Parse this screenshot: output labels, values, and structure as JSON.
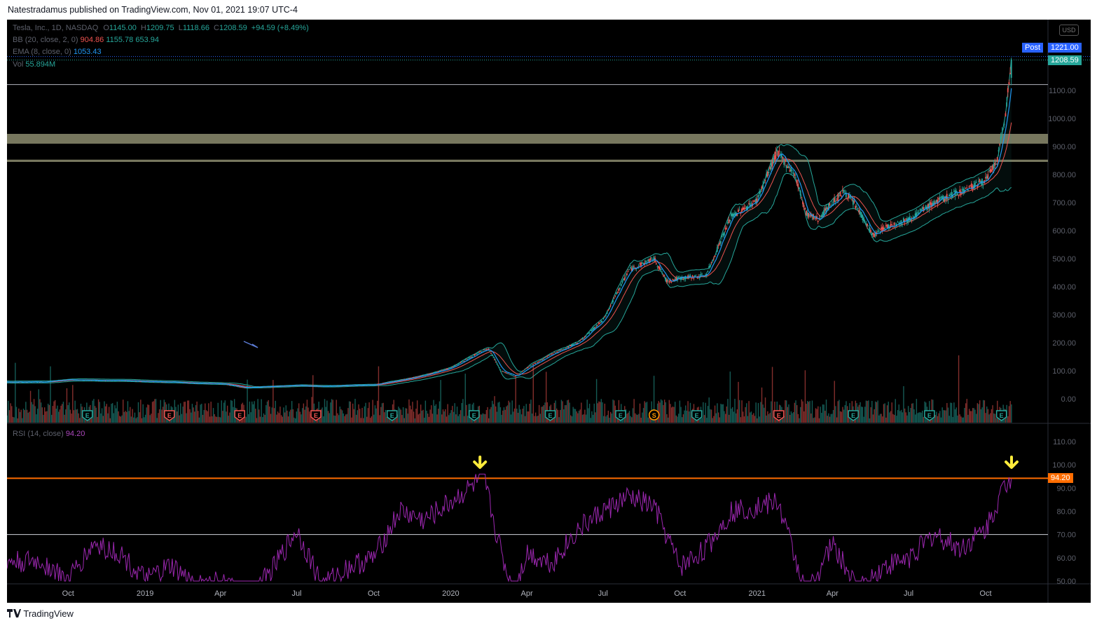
{
  "header": {
    "published_text": "Natestradamus published on TradingView.com, Nov 01, 2021 19:07 UTC-4"
  },
  "legend": {
    "symbol": "Tesla, Inc., 1D, NASDAQ",
    "o_label": "O",
    "o_value": "1145.00",
    "h_label": "H",
    "h_value": "1209.75",
    "l_label": "L",
    "l_value": "1118.66",
    "c_label": "C",
    "c_value": "1208.59",
    "change": "+94.59 (+8.49%)",
    "bb_label": "BB (20, close, 2, 0)",
    "bb_basis": "904.86",
    "bb_upper": "1155.78",
    "bb_lower": "653.94",
    "ema_label": "EMA (8, close, 0)",
    "ema_value": "1053.43",
    "vol_label": "Vol",
    "vol_value": "55.894M",
    "rsi_label": "RSI (14, close)",
    "rsi_value": "94.20"
  },
  "tags": {
    "currency": "USD",
    "post_label": "Post",
    "post_price": "1221.00",
    "last_price": "1208.59",
    "rsi_tag": "94.20"
  },
  "footer": {
    "brand": "TradingView"
  },
  "colors": {
    "up": "#26a69a",
    "down": "#ef5350",
    "bb_band": "#26a69a",
    "bb_basis": "#ef5350",
    "ema": "#2196f3",
    "rsi": "#9c27b0",
    "zone": "#8c8c6e",
    "rsi_level": "#ff6d00",
    "arrow": "#ffeb3b"
  },
  "chart_data": [
    {
      "type": "line",
      "subtype": "candlestick-with-bollinger-bands",
      "title": "Tesla, Inc., 1D, NASDAQ",
      "x_ticks": [
        "Oct",
        "2019",
        "Apr",
        "Jul",
        "Oct",
        "2020",
        "Apr",
        "Jul",
        "Oct",
        "2021",
        "Apr",
        "Jul",
        "Oct"
      ],
      "y_ticks": [
        "0.00",
        "100.00",
        "200.00",
        "300.00",
        "400.00",
        "500.00",
        "600.00",
        "700.00",
        "800.00",
        "900.00",
        "1000.00",
        "1100.00"
      ],
      "ylim": [
        -90,
        1240
      ],
      "series": [
        {
          "name": "Close",
          "x": [
            "2018-09-01",
            "2018-10-01",
            "2018-11-01",
            "2018-12-01",
            "2019-01-01",
            "2019-02-01",
            "2019-03-01",
            "2019-04-01",
            "2019-05-01",
            "2019-06-01",
            "2019-07-01",
            "2019-08-01",
            "2019-09-01",
            "2019-10-01",
            "2019-11-01",
            "2019-12-01",
            "2020-01-01",
            "2020-02-01",
            "2020-02-15",
            "2020-03-01",
            "2020-03-18",
            "2020-04-01",
            "2020-05-01",
            "2020-06-01",
            "2020-07-01",
            "2020-08-01",
            "2020-08-31",
            "2020-09-15",
            "2020-10-01",
            "2020-11-01",
            "2020-12-01",
            "2020-12-31",
            "2021-01-25",
            "2021-02-15",
            "2021-03-01",
            "2021-03-15",
            "2021-04-01",
            "2021-04-15",
            "2021-05-01",
            "2021-05-20",
            "2021-06-01",
            "2021-07-01",
            "2021-08-01",
            "2021-09-01",
            "2021-10-01",
            "2021-10-15",
            "2021-10-25",
            "2021-11-01"
          ],
          "y": [
            60,
            68,
            66,
            66,
            62,
            60,
            56,
            54,
            40,
            44,
            48,
            44,
            48,
            50,
            66,
            84,
            110,
            160,
            180,
            100,
            80,
            110,
            160,
            200,
            280,
            460,
            500,
            420,
            430,
            440,
            650,
            705,
            880,
            800,
            660,
            640,
            700,
            740,
            680,
            580,
            610,
            640,
            700,
            740,
            780,
            850,
            1020,
            1208.59
          ]
        },
        {
          "name": "BB upper",
          "ref": "Close + band"
        },
        {
          "name": "BB basis",
          "ref": "Close smoothed"
        },
        {
          "name": "BB lower",
          "ref": "Close - band"
        },
        {
          "name": "EMA",
          "ref": "Close fast"
        }
      ],
      "horizontal_levels": [
        1121,
        930,
        850
      ],
      "last_values": {
        "close": 1208.59,
        "post": 1221.0,
        "bb_upper": 1155.78,
        "bb_basis": 904.86,
        "bb_lower": 653.94,
        "ema": 1053.43
      },
      "earnings_markers": [
        "E",
        "E",
        "E",
        "E",
        "E",
        "E",
        "E",
        "E",
        "S",
        "E",
        "E",
        "E",
        "E",
        "E"
      ]
    },
    {
      "type": "line",
      "title": "RSI (14, close)",
      "y_ticks": [
        "50.00",
        "60.00",
        "70.00",
        "80.00",
        "90.00",
        "100.00",
        "110.00"
      ],
      "ylim": [
        50,
        115
      ],
      "levels": [
        70,
        94.2
      ],
      "series": [
        {
          "name": "RSI",
          "x": [
            "2018-09-01",
            "2018-10-01",
            "2018-11-01",
            "2018-12-01",
            "2019-01-01",
            "2019-02-01",
            "2019-03-01",
            "2019-04-01",
            "2019-05-01",
            "2019-06-01",
            "2019-07-01",
            "2019-08-01",
            "2019-09-01",
            "2019-10-01",
            "2019-11-01",
            "2019-12-01",
            "2020-01-01",
            "2020-02-01",
            "2020-02-10",
            "2020-02-25",
            "2020-03-15",
            "2020-04-01",
            "2020-05-01",
            "2020-06-01",
            "2020-07-01",
            "2020-08-01",
            "2020-08-31",
            "2020-10-01",
            "2020-11-01",
            "2020-12-01",
            "2021-01-01",
            "2021-01-26",
            "2021-03-01",
            "2021-04-01",
            "2021-05-01",
            "2021-06-01",
            "2021-07-01",
            "2021-08-01",
            "2021-09-01",
            "2021-10-01",
            "2021-10-20",
            "2021-11-01"
          ],
          "y": [
            58,
            50,
            66,
            62,
            50,
            56,
            48,
            50,
            42,
            54,
            72,
            48,
            56,
            60,
            80,
            76,
            84,
            92,
            94,
            70,
            44,
            62,
            58,
            72,
            80,
            86,
            82,
            56,
            64,
            80,
            82,
            84,
            44,
            66,
            46,
            56,
            60,
            70,
            64,
            72,
            88,
            94.2
          ]
        }
      ],
      "annotations": [
        "arrow-down at 2020-02 peak",
        "arrow-down at 2021-11 peak"
      ]
    }
  ]
}
